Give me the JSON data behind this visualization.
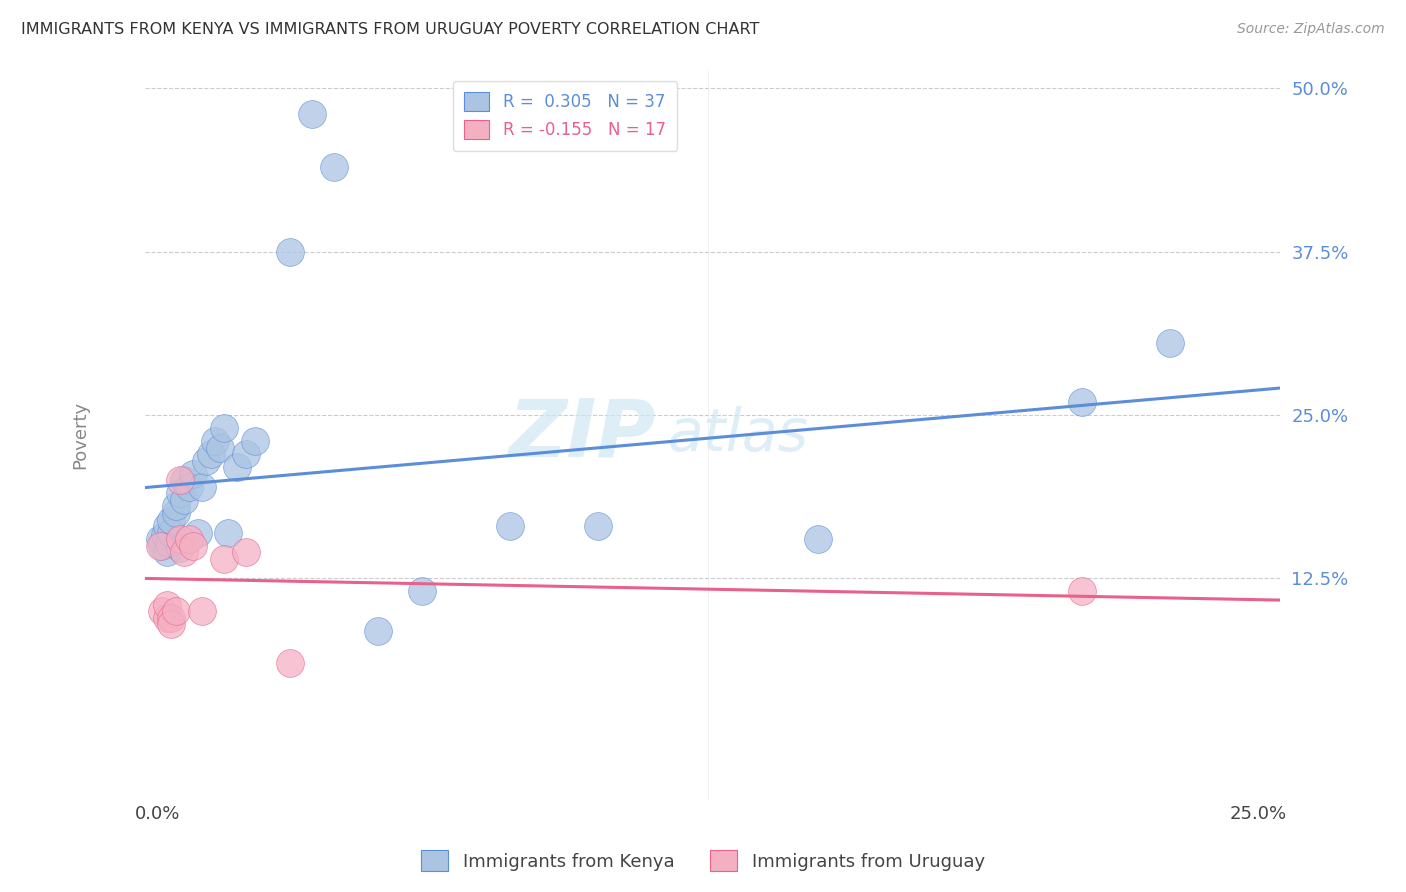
{
  "title": "IMMIGRANTS FROM KENYA VS IMMIGRANTS FROM URUGUAY POVERTY CORRELATION CHART",
  "source": "Source: ZipAtlas.com",
  "ylabel": "Poverty",
  "xlim": [
    -0.003,
    0.255
  ],
  "ylim": [
    -0.045,
    0.515
  ],
  "ytick_values": [
    0.125,
    0.25,
    0.375,
    0.5
  ],
  "ytick_labels": [
    "12.5%",
    "25.0%",
    "37.5%",
    "50.0%"
  ],
  "xtick_values": [
    0.0,
    0.125,
    0.25
  ],
  "xtick_labels": [
    "0.0%",
    "",
    "25.0%"
  ],
  "legend_kenya": "Immigrants from Kenya",
  "legend_uruguay": "Immigrants from Uruguay",
  "kenya_color": "#aac4e2",
  "kenya_line_color": "#5b8dd9",
  "kenya_edge_color": "#5b8dd9",
  "uruguay_color": "#f4b0c3",
  "uruguay_line_color": "#e8618a",
  "uruguay_edge_color": "#e8618a",
  "kenya_x": [
    0.0005,
    0.001,
    0.0015,
    0.002,
    0.002,
    0.0025,
    0.003,
    0.003,
    0.004,
    0.004,
    0.005,
    0.005,
    0.006,
    0.006,
    0.007,
    0.008,
    0.009,
    0.01,
    0.011,
    0.012,
    0.013,
    0.014,
    0.015,
    0.016,
    0.018,
    0.02,
    0.022,
    0.03,
    0.035,
    0.04,
    0.05,
    0.06,
    0.08,
    0.1,
    0.15,
    0.21,
    0.23
  ],
  "kenya_y": [
    0.155,
    0.15,
    0.158,
    0.145,
    0.165,
    0.152,
    0.16,
    0.17,
    0.175,
    0.18,
    0.148,
    0.19,
    0.185,
    0.2,
    0.195,
    0.205,
    0.16,
    0.195,
    0.215,
    0.22,
    0.23,
    0.225,
    0.24,
    0.16,
    0.21,
    0.22,
    0.23,
    0.375,
    0.48,
    0.44,
    0.085,
    0.115,
    0.165,
    0.165,
    0.155,
    0.26,
    0.305
  ],
  "uruguay_x": [
    0.0005,
    0.001,
    0.002,
    0.002,
    0.003,
    0.003,
    0.004,
    0.005,
    0.005,
    0.006,
    0.007,
    0.008,
    0.01,
    0.015,
    0.02,
    0.03,
    0.21
  ],
  "uruguay_y": [
    0.15,
    0.1,
    0.095,
    0.105,
    0.095,
    0.09,
    0.1,
    0.2,
    0.155,
    0.145,
    0.155,
    0.15,
    0.1,
    0.14,
    0.145,
    0.06,
    0.115
  ],
  "background_color": "#ffffff",
  "grid_color": "#cccccc",
  "title_color": "#333333",
  "watermark_color": "#d0e8f5",
  "watermark_alpha": 0.7
}
